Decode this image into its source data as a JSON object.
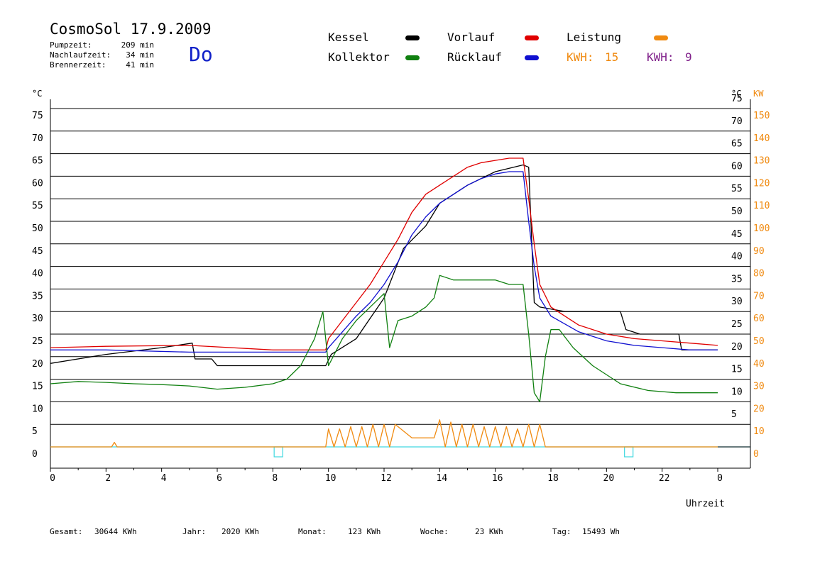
{
  "header": {
    "title": "CosmoSol 17.9.2009",
    "day": "Do",
    "stats": [
      {
        "label": "Pumpzeit:",
        "value": "209 min"
      },
      {
        "label": "Nachlaufzeit:",
        "value": "34 min"
      },
      {
        "label": "Brennerzeit:",
        "value": "41 min"
      }
    ]
  },
  "legend": {
    "kessel": {
      "label": "Kessel",
      "color": "#000000"
    },
    "vorlauf": {
      "label": "Vorlauf",
      "color": "#e00000"
    },
    "leistung": {
      "label": "Leistung",
      "color": "#f08a10"
    },
    "kollektor": {
      "label": "Kollektor",
      "color": "#108010"
    },
    "ruecklauf": {
      "label": "Rücklauf",
      "color": "#1010d0"
    },
    "kwh_orange": {
      "label": "KWH:",
      "value": "15",
      "color": "#f08a10"
    },
    "kwh_purple": {
      "label": "KWH:",
      "value": "9",
      "color": "#80208a"
    }
  },
  "footer": {
    "gesamt": {
      "label": "Gesamt:",
      "value": "30644 KWh"
    },
    "jahr": {
      "label": "Jahr:",
      "value": "2020 KWh"
    },
    "monat": {
      "label": "Monat:",
      "value": "123 KWh"
    },
    "woche": {
      "label": "Woche:",
      "value": "23 KWh"
    },
    "tag": {
      "label": "Tag:",
      "value": "15493 Wh"
    }
  },
  "chart_data": {
    "type": "line",
    "xlabel": "Uhrzeit",
    "x_ticks": [
      "0",
      "2",
      "4",
      "6",
      "8",
      "10",
      "12",
      "14",
      "16",
      "18",
      "20",
      "22",
      "0"
    ],
    "y_left_label": "°C",
    "y_left_ticks": [
      "0",
      "5",
      "10",
      "15",
      "20",
      "25",
      "30",
      "35",
      "40",
      "45",
      "50",
      "55",
      "60",
      "65",
      "70",
      "75"
    ],
    "y_right_label": "°C",
    "y_right_ticks": [
      "5",
      "10",
      "15",
      "20",
      "25",
      "30",
      "35",
      "40",
      "45",
      "50",
      "55",
      "60",
      "65",
      "70",
      "75"
    ],
    "y2_label": "KW",
    "y2_ticks": [
      "0",
      "10",
      "20",
      "30",
      "40",
      "50",
      "60",
      "70",
      "80",
      "90",
      "100",
      "110",
      "120",
      "130",
      "140",
      "150"
    ],
    "xlim": [
      0,
      24
    ],
    "ylim": [
      0,
      80
    ],
    "grid": true,
    "series": [
      {
        "name": "Kessel",
        "color": "#000000",
        "x": [
          0,
          2,
          4,
          5.1,
          5.2,
          5.8,
          6,
          8,
          9.9,
          10.1,
          11,
          12,
          12.7,
          13.5,
          14,
          15,
          16,
          17,
          17.2,
          17.4,
          17.6,
          18.5,
          20.5,
          20.7,
          21.2,
          22.6,
          22.7,
          24
        ],
        "y": [
          18.5,
          20.5,
          22,
          23,
          19.5,
          19.5,
          18,
          18,
          18,
          20.5,
          24,
          33,
          44,
          49,
          54,
          58,
          61,
          62.5,
          62,
          32,
          31,
          30,
          30,
          26,
          25,
          25,
          21.5,
          21.5
        ]
      },
      {
        "name": "Vorlauf",
        "color": "#e00000",
        "x": [
          0,
          2,
          5,
          8,
          9.9,
          10,
          10.5,
          11,
          11.5,
          12,
          12.5,
          13,
          13.5,
          14,
          14.5,
          15,
          15.5,
          16,
          16.5,
          17,
          17.2,
          17.4,
          17.6,
          18,
          19,
          20,
          21,
          22,
          23,
          24
        ],
        "y": [
          22,
          22.3,
          22.5,
          21.5,
          21.5,
          24,
          28,
          32,
          36,
          41,
          46,
          52,
          56,
          58,
          60,
          62,
          63,
          63.5,
          64,
          64,
          55,
          45,
          36,
          31,
          27,
          25,
          24,
          23.5,
          23,
          22.5
        ]
      },
      {
        "name": "Rücklauf",
        "color": "#1010d0",
        "x": [
          0,
          2,
          5,
          8,
          9.9,
          10,
          10.5,
          11,
          11.5,
          12,
          12.5,
          13,
          13.5,
          14,
          14.5,
          15,
          15.5,
          16,
          16.5,
          17,
          17.2,
          17.4,
          17.6,
          18,
          19,
          20,
          21,
          22,
          23,
          24
        ],
        "y": [
          21.5,
          21.5,
          21,
          21,
          21,
          22,
          25.5,
          29,
          32,
          36,
          41,
          47,
          51,
          54,
          56,
          58,
          59.5,
          60.5,
          61,
          61,
          50,
          40,
          33,
          29,
          25.5,
          23.5,
          22.5,
          22,
          21.5,
          21.5
        ]
      },
      {
        "name": "Kollektor",
        "color": "#108010",
        "x": [
          0,
          1,
          2,
          3,
          4,
          5,
          6,
          7,
          8,
          8.5,
          9,
          9.5,
          9.8,
          10,
          10.5,
          11,
          11.5,
          12,
          12.2,
          12.5,
          13,
          13.5,
          13.8,
          14,
          14.5,
          15,
          15.5,
          16,
          16.5,
          17,
          17.2,
          17.4,
          17.6,
          17.8,
          18,
          18.3,
          18.8,
          19.5,
          20.5,
          21.5,
          22.5,
          24
        ],
        "y": [
          14,
          14.5,
          14.3,
          14,
          13.8,
          13.5,
          12.8,
          13.2,
          14,
          15,
          18,
          24,
          30,
          18,
          24,
          28,
          31,
          34,
          22,
          28,
          29,
          31,
          33,
          38,
          37,
          37,
          37,
          37,
          36,
          36,
          25,
          12,
          10,
          20,
          26,
          26,
          22,
          18,
          14,
          12.5,
          12,
          12
        ]
      },
      {
        "name": "Leistung",
        "color": "#f08a10",
        "x": [
          0,
          2.2,
          2.3,
          2.4,
          9.9,
          10,
          10.2,
          10.4,
          10.6,
          10.8,
          11,
          11.2,
          11.4,
          11.6,
          11.8,
          12,
          12.2,
          12.4,
          13,
          13.8,
          14,
          14.2,
          14.4,
          14.6,
          14.8,
          15,
          15.2,
          15.4,
          15.6,
          15.8,
          16,
          16.2,
          16.4,
          16.6,
          16.8,
          17,
          17.2,
          17.4,
          17.6,
          17.8,
          24
        ],
        "y": [
          0,
          0,
          1,
          0,
          0,
          4,
          0,
          4,
          0,
          4.5,
          0,
          4.5,
          0,
          5,
          0,
          5,
          0,
          5,
          2,
          2,
          6,
          0,
          5.5,
          0,
          5,
          0,
          5,
          0,
          4.5,
          0,
          4.5,
          0,
          4.5,
          0,
          4,
          0,
          5,
          0,
          5,
          0,
          0
        ]
      }
    ]
  }
}
